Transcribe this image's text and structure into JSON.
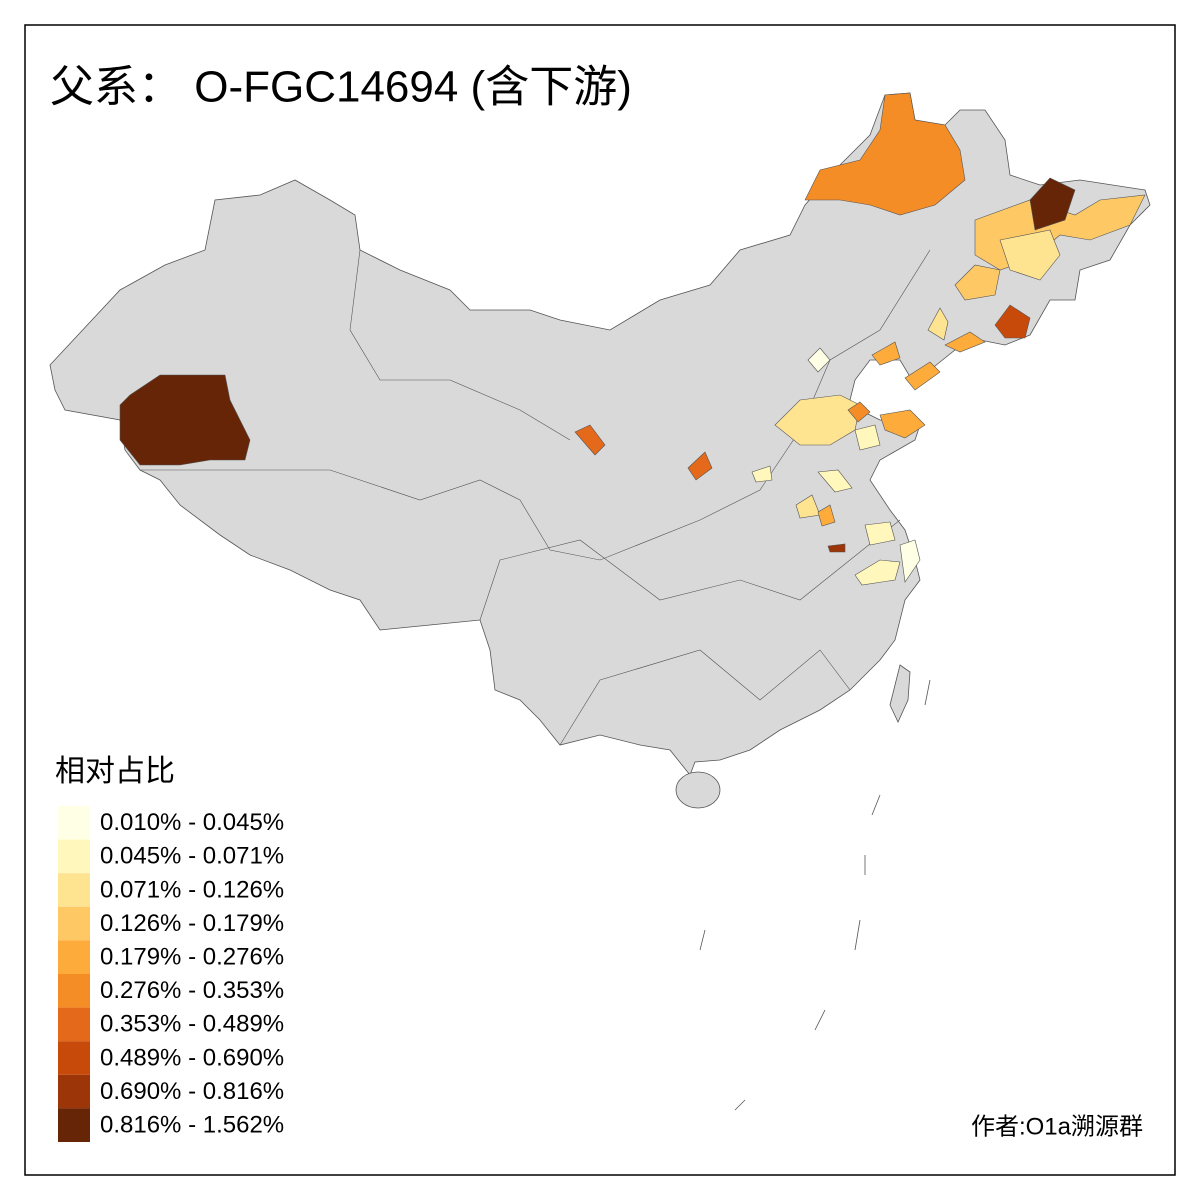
{
  "title": "父系： O-FGC14694 (含下游)",
  "legend": {
    "title": "相对占比",
    "items": [
      {
        "label": "0.010% - 0.045%",
        "color": "#ffffe5"
      },
      {
        "label": "0.045% - 0.071%",
        "color": "#fff7bc"
      },
      {
        "label": "0.071% - 0.126%",
        "color": "#fee391"
      },
      {
        "label": "0.126% - 0.179%",
        "color": "#fec965"
      },
      {
        "label": "0.179% - 0.276%",
        "color": "#fdac3c"
      },
      {
        "label": "0.276% - 0.353%",
        "color": "#f58d26"
      },
      {
        "label": "0.353% - 0.489%",
        "color": "#e4691a"
      },
      {
        "label": "0.489% - 0.690%",
        "color": "#c84a0b"
      },
      {
        "label": "0.690% - 0.816%",
        "color": "#9c3507"
      },
      {
        "label": "0.816% - 1.562%",
        "color": "#662506"
      }
    ]
  },
  "credit": "作者:O1a溯源群"
}
